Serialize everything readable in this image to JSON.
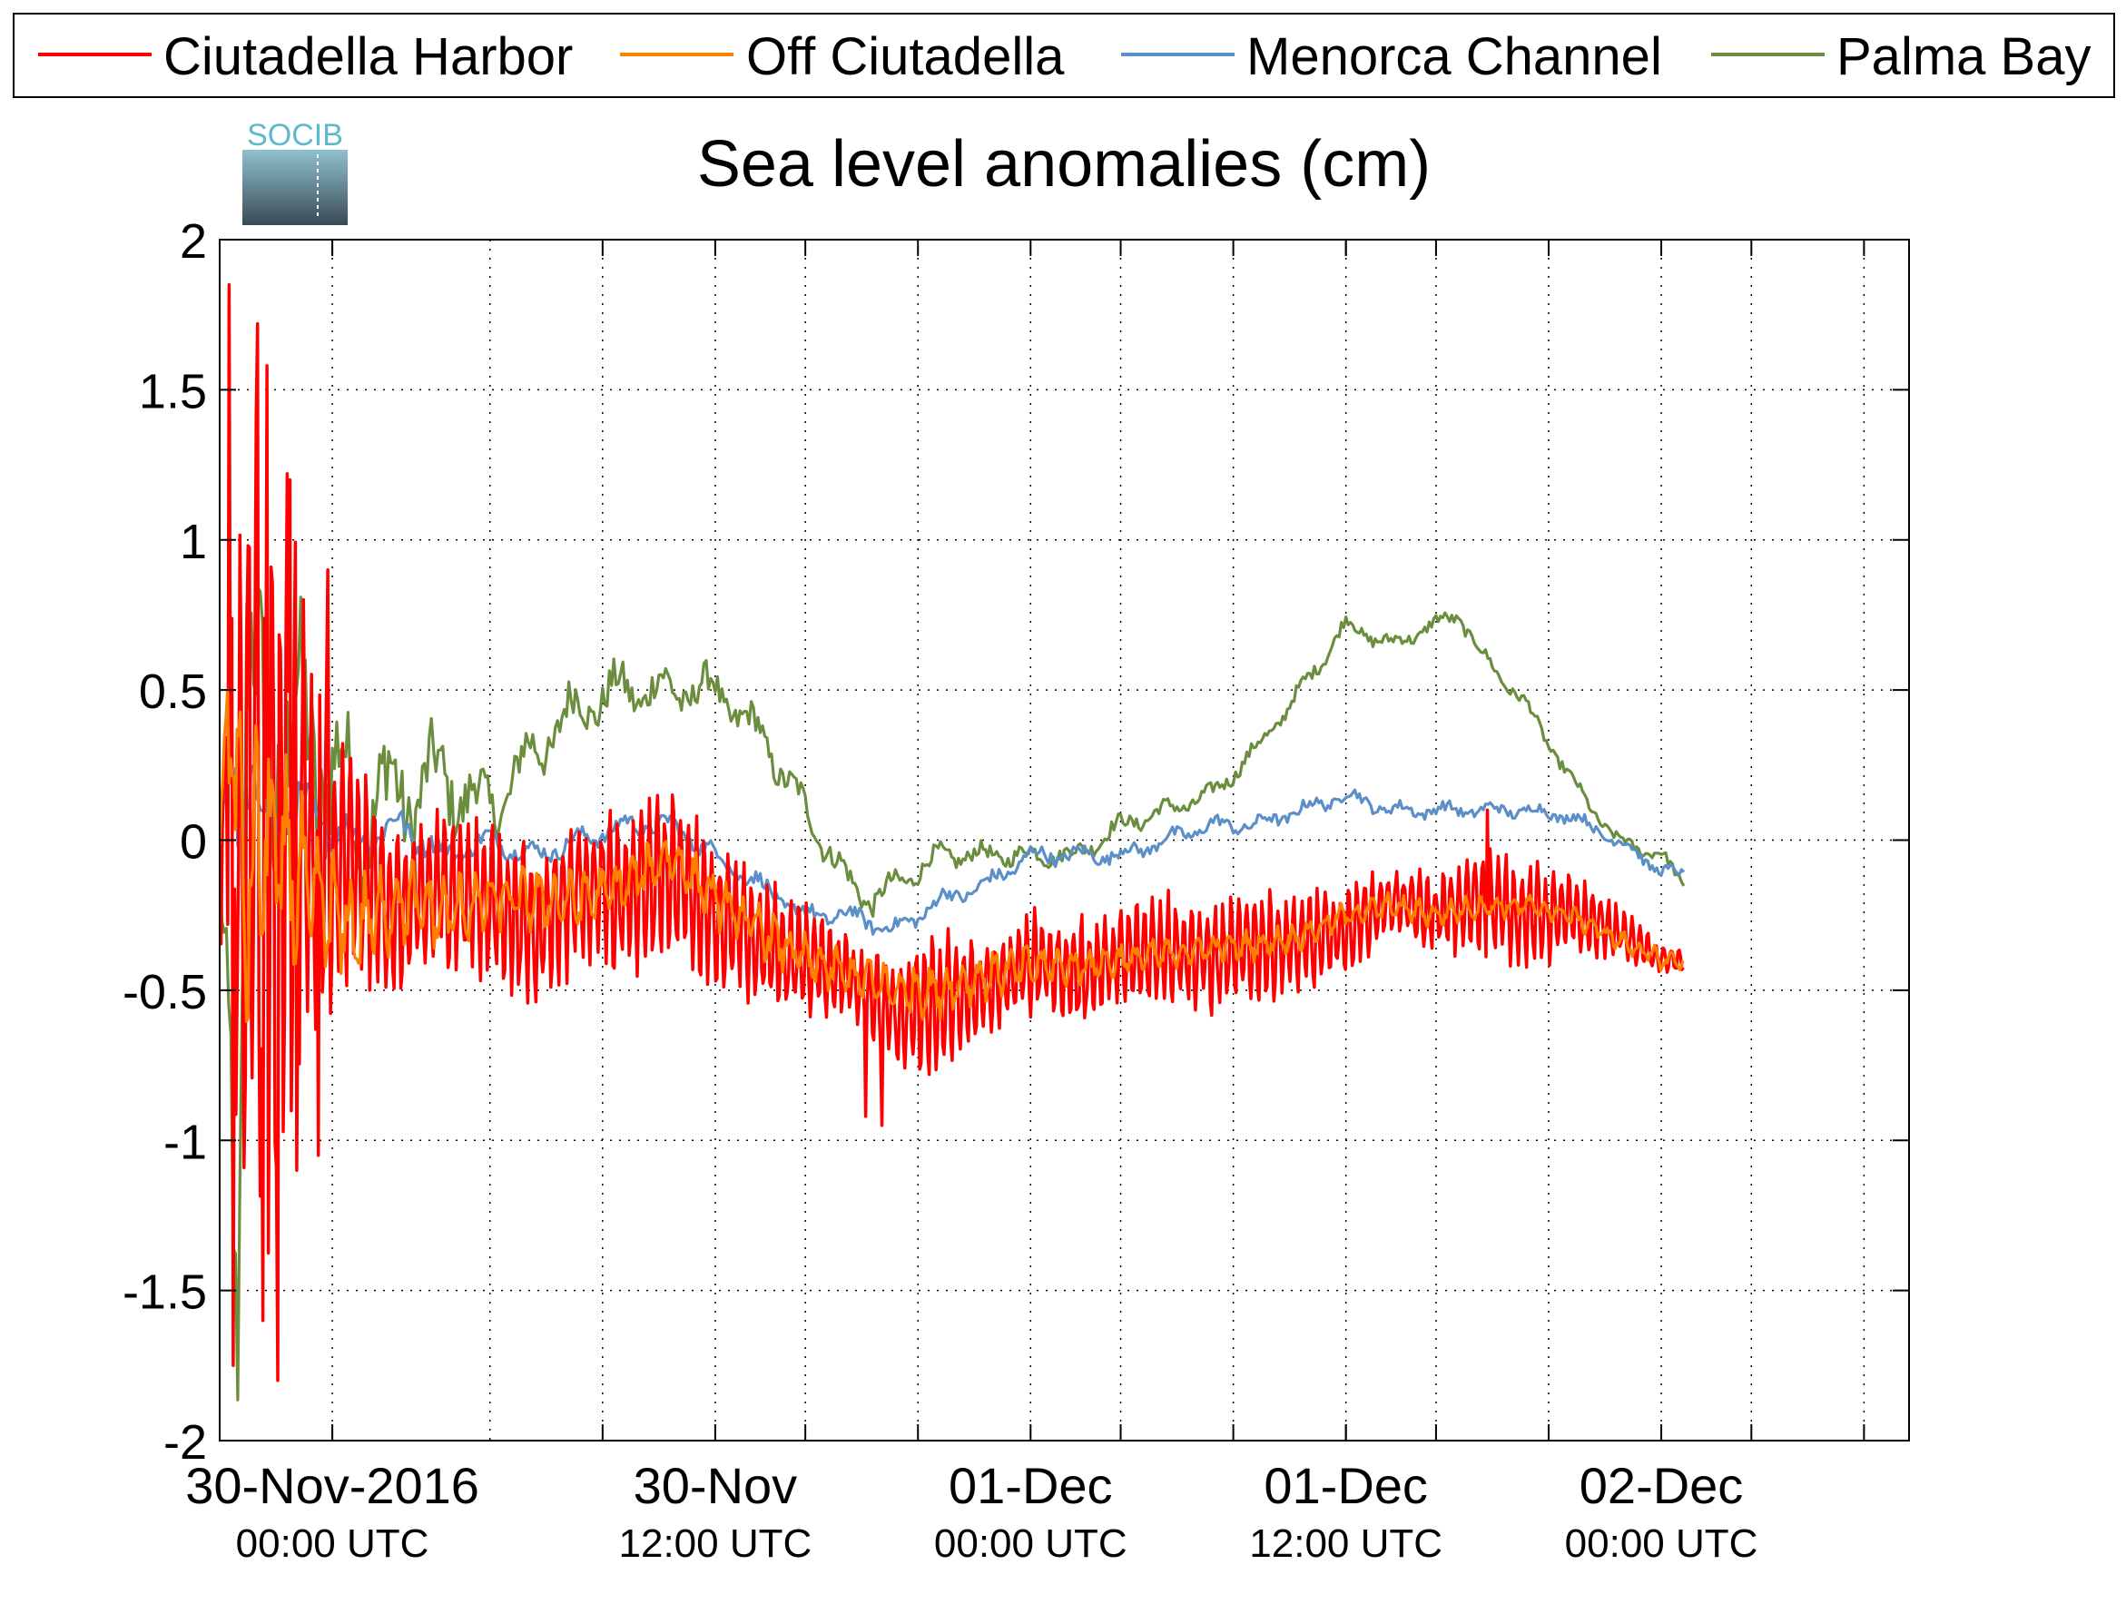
{
  "chart_data": {
    "type": "line",
    "title": "Sea level anomalies (cm)",
    "logo_text": "SOCIB",
    "xlabel": "",
    "ylabel": "",
    "x_range_hours": [
      -12,
      63
    ],
    "ylim": [
      -2,
      2
    ],
    "yticks": [
      2,
      1.5,
      1,
      0.5,
      0,
      -0.5,
      -1,
      -1.5,
      -2
    ],
    "ytick_labels": [
      "2",
      "1.5",
      "1",
      "0.5",
      "0",
      "-0.5",
      "-1",
      "-1.5",
      "-2"
    ],
    "x_gridlines_hours": [
      -12,
      -7,
      0,
      5,
      10,
      14,
      19,
      24,
      28,
      33,
      38,
      42,
      47,
      52,
      56,
      61
    ],
    "x_minor_ticks_hours": [
      -7,
      5,
      14,
      19,
      28,
      33,
      38,
      42,
      47,
      56,
      61
    ],
    "grid": true,
    "legend_position": "top",
    "x_ticks": [
      {
        "hour": -7,
        "date": "30-Nov-2016",
        "time": "00:00 UTC"
      },
      {
        "hour": 10,
        "date": "30-Nov",
        "time": "12:00 UTC"
      },
      {
        "hour": 24,
        "date": "01-Dec",
        "time": "00:00 UTC"
      },
      {
        "hour": 38,
        "date": "01-Dec",
        "time": "12:00 UTC"
      },
      {
        "hour": 52,
        "date": "02-Dec",
        "time": "00:00 UTC"
      }
    ],
    "series": [
      {
        "name": "Ciutadella Harbor",
        "color": "#ff0000",
        "base": [
          [
            -12,
            0
          ],
          [
            -11,
            0
          ],
          [
            -10.5,
            0.3
          ],
          [
            -10,
            -0.2
          ],
          [
            -9,
            0.2
          ],
          [
            -8,
            0
          ],
          [
            -7,
            -0.1
          ],
          [
            -6,
            -0.1
          ],
          [
            -4,
            -0.25
          ],
          [
            -2,
            -0.15
          ],
          [
            0,
            -0.2
          ],
          [
            2,
            -0.3
          ],
          [
            4,
            -0.15
          ],
          [
            6,
            -0.2
          ],
          [
            8,
            -0.1
          ],
          [
            10,
            -0.25
          ],
          [
            12,
            -0.35
          ],
          [
            14,
            -0.4
          ],
          [
            16,
            -0.45
          ],
          [
            18,
            -0.6
          ],
          [
            20,
            -0.55
          ],
          [
            22,
            -0.5
          ],
          [
            24,
            -0.4
          ],
          [
            26,
            -0.45
          ],
          [
            28,
            -0.4
          ],
          [
            30,
            -0.35
          ],
          [
            32,
            -0.4
          ],
          [
            34,
            -0.35
          ],
          [
            36,
            -0.35
          ],
          [
            38,
            -0.3
          ],
          [
            40,
            -0.2
          ],
          [
            42,
            -0.25
          ],
          [
            44,
            -0.2
          ],
          [
            46,
            -0.25
          ],
          [
            48,
            -0.25
          ],
          [
            50,
            -0.3
          ],
          [
            52,
            -0.4
          ],
          [
            53,
            -0.4
          ]
        ],
        "amp": [
          [
            -12,
            0.3
          ],
          [
            -11,
            1.5
          ],
          [
            -10,
            1.5
          ],
          [
            -9,
            1.2
          ],
          [
            -8,
            0.7
          ],
          [
            -7,
            0.6
          ],
          [
            -6,
            0.4
          ],
          [
            -4,
            0.3
          ],
          [
            0,
            0.3
          ],
          [
            4,
            0.3
          ],
          [
            8,
            0.3
          ],
          [
            12,
            0.25
          ],
          [
            16,
            0.15
          ],
          [
            18,
            0.2
          ],
          [
            20,
            0.3
          ],
          [
            22,
            0.15
          ],
          [
            24,
            0.2
          ],
          [
            30,
            0.2
          ],
          [
            36,
            0.2
          ],
          [
            40,
            0.12
          ],
          [
            42,
            0.15
          ],
          [
            44,
            0.2
          ],
          [
            46,
            0.2
          ],
          [
            48,
            0.15
          ],
          [
            52,
            0.05
          ],
          [
            53,
            0.05
          ]
        ],
        "spikes": [
          [
            -11.6,
            1.85
          ],
          [
            -11.4,
            -1.75
          ],
          [
            -10.3,
            1.72
          ],
          [
            -10.1,
            -1.6
          ],
          [
            -9.9,
            1.58
          ],
          [
            -9.4,
            -1.8
          ],
          [
            -8.9,
            1.2
          ],
          [
            -8.6,
            -1.1
          ],
          [
            -7.6,
            -1.05
          ],
          [
            -7.2,
            0.9
          ],
          [
            17.4,
            -0.95
          ],
          [
            16.7,
            -0.92
          ],
          [
            44.3,
            0.1
          ]
        ]
      },
      {
        "name": "Off Ciutadella",
        "color": "#ff8000",
        "base": [
          [
            -12,
            0
          ],
          [
            -11.5,
            0.5
          ],
          [
            -11,
            -0.2
          ],
          [
            -10,
            0
          ],
          [
            -8,
            -0.2
          ],
          [
            -6,
            -0.3
          ],
          [
            -4,
            -0.2
          ],
          [
            -2,
            -0.25
          ],
          [
            0,
            -0.2
          ],
          [
            2,
            -0.2
          ],
          [
            4,
            -0.2
          ],
          [
            6,
            -0.15
          ],
          [
            8,
            -0.05
          ],
          [
            10,
            -0.2
          ],
          [
            12,
            -0.3
          ],
          [
            14,
            -0.4
          ],
          [
            16,
            -0.45
          ],
          [
            18,
            -0.5
          ],
          [
            20,
            -0.5
          ],
          [
            22,
            -0.45
          ],
          [
            24,
            -0.42
          ],
          [
            26,
            -0.42
          ],
          [
            28,
            -0.4
          ],
          [
            30,
            -0.38
          ],
          [
            32,
            -0.36
          ],
          [
            34,
            -0.35
          ],
          [
            36,
            -0.32
          ],
          [
            38,
            -0.25
          ],
          [
            40,
            -0.22
          ],
          [
            42,
            -0.25
          ],
          [
            44,
            -0.22
          ],
          [
            46,
            -0.22
          ],
          [
            48,
            -0.25
          ],
          [
            50,
            -0.33
          ],
          [
            52,
            -0.4
          ],
          [
            53,
            -0.4
          ]
        ],
        "amp": [
          [
            -12,
            0.2
          ],
          [
            -11,
            0.6
          ],
          [
            -10,
            0.5
          ],
          [
            -8,
            0.3
          ],
          [
            -6,
            0.2
          ],
          [
            0,
            0.12
          ],
          [
            10,
            0.1
          ],
          [
            20,
            0.1
          ],
          [
            30,
            0.06
          ],
          [
            40,
            0.05
          ],
          [
            53,
            0.04
          ]
        ],
        "spikes": []
      },
      {
        "name": "Menorca Channel",
        "color": "#5b8fc7",
        "base": [
          [
            -12,
            0
          ],
          [
            -11.5,
            0.4
          ],
          [
            -11,
            0.05
          ],
          [
            -10,
            0.1
          ],
          [
            -8,
            0.1
          ],
          [
            -6,
            0
          ],
          [
            -4,
            0.05
          ],
          [
            -2,
            -0.05
          ],
          [
            0,
            0
          ],
          [
            2,
            -0.05
          ],
          [
            4,
            0
          ],
          [
            6,
            0.05
          ],
          [
            8,
            0.05
          ],
          [
            10,
            -0.05
          ],
          [
            12,
            -0.15
          ],
          [
            14,
            -0.25
          ],
          [
            16,
            -0.25
          ],
          [
            18,
            -0.3
          ],
          [
            20,
            -0.2
          ],
          [
            22,
            -0.15
          ],
          [
            24,
            -0.05
          ],
          [
            26,
            -0.05
          ],
          [
            28,
            -0.05
          ],
          [
            30,
            0
          ],
          [
            32,
            0.05
          ],
          [
            34,
            0.05
          ],
          [
            36,
            0.1
          ],
          [
            38,
            0.15
          ],
          [
            40,
            0.1
          ],
          [
            42,
            0.1
          ],
          [
            44,
            0.1
          ],
          [
            46,
            0.1
          ],
          [
            48,
            0.08
          ],
          [
            50,
            0
          ],
          [
            52,
            -0.1
          ],
          [
            53,
            -0.12
          ]
        ],
        "amp": [
          [
            -12,
            0.2
          ],
          [
            -11,
            0.3
          ],
          [
            -10,
            0.15
          ],
          [
            -8,
            0.1
          ],
          [
            0,
            0.05
          ],
          [
            53,
            0.03
          ]
        ],
        "spikes": []
      },
      {
        "name": "Palma Bay",
        "color": "#6b8e3e",
        "base": [
          [
            -12,
            0
          ],
          [
            -11.5,
            -0.5
          ],
          [
            -11.2,
            -1.9
          ],
          [
            -10.8,
            0.3
          ],
          [
            -10,
            0.5
          ],
          [
            -9,
            0.2
          ],
          [
            -8,
            0.4
          ],
          [
            -7,
            0.2
          ],
          [
            -6,
            0.1
          ],
          [
            -4,
            0.15
          ],
          [
            -2,
            0.2
          ],
          [
            0,
            0.1
          ],
          [
            2,
            0.3
          ],
          [
            4,
            0.45
          ],
          [
            6,
            0.5
          ],
          [
            8,
            0.5
          ],
          [
            10,
            0.5
          ],
          [
            12,
            0.35
          ],
          [
            14,
            0.1
          ],
          [
            16,
            -0.15
          ],
          [
            17,
            -0.2
          ],
          [
            18,
            -0.15
          ],
          [
            20,
            -0.05
          ],
          [
            22,
            -0.05
          ],
          [
            24,
            -0.05
          ],
          [
            26,
            -0.05
          ],
          [
            28,
            0.05
          ],
          [
            30,
            0.1
          ],
          [
            32,
            0.15
          ],
          [
            34,
            0.3
          ],
          [
            36,
            0.5
          ],
          [
            38,
            0.72
          ],
          [
            40,
            0.65
          ],
          [
            42,
            0.72
          ],
          [
            43,
            0.75
          ],
          [
            44,
            0.62
          ],
          [
            46,
            0.45
          ],
          [
            48,
            0.2
          ],
          [
            50,
            0
          ],
          [
            52,
            -0.05
          ],
          [
            53,
            -0.15
          ]
        ],
        "amp": [
          [
            -12,
            0.3
          ],
          [
            -11,
            0.7
          ],
          [
            -10,
            0.7
          ],
          [
            -9,
            0.6
          ],
          [
            -7,
            0.4
          ],
          [
            -5,
            0.3
          ],
          [
            0,
            0.15
          ],
          [
            10,
            0.1
          ],
          [
            20,
            0.05
          ],
          [
            53,
            0.03
          ]
        ],
        "spikes": []
      }
    ]
  }
}
